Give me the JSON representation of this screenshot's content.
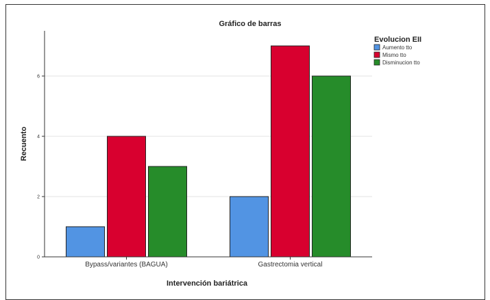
{
  "chart_data": {
    "type": "bar",
    "title": "Gráfico de barras",
    "xlabel": "Intervención bariátrica",
    "ylabel": "Recuento",
    "categories": [
      "Bypass/variantes (BAGUA)",
      "Gastrectomia vertical"
    ],
    "series": [
      {
        "name": "Aumento tto",
        "values": [
          1,
          2
        ],
        "color": "#5294e3"
      },
      {
        "name": "Mismo tto",
        "values": [
          4,
          7
        ],
        "color": "#d8002f"
      },
      {
        "name": "Disminucion tto",
        "values": [
          3,
          6
        ],
        "color": "#268c2a"
      }
    ],
    "ylim": [
      0,
      7.5
    ],
    "yticks": [
      0,
      2,
      4,
      6
    ],
    "grid": true,
    "legend": {
      "title": "Evolucion EII",
      "placement": "top-right"
    }
  }
}
